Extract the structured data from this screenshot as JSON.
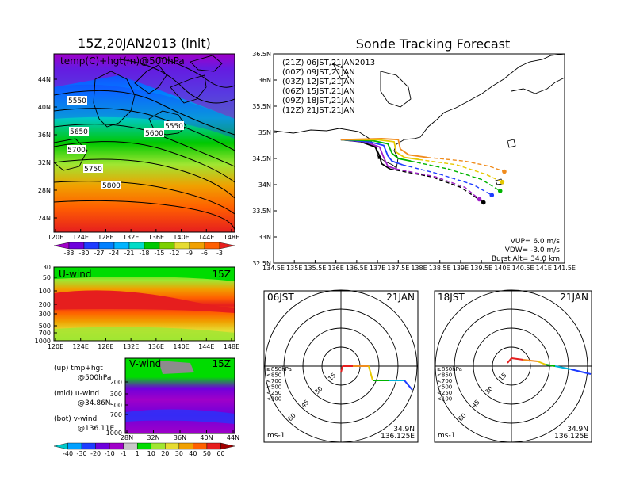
{
  "titles": {
    "left_main": "15Z,20JAN2013 (init)",
    "map_label": "temp(C)+hgt(m)@500hPa",
    "right_main": "Sonde Tracking Forecast",
    "uwind_label": "U-wind",
    "uwind_time": "15Z",
    "vwind_label": "V-wind",
    "vwind_time": "15Z"
  },
  "legend_notes": [
    {
      "a": "(up) tmp+hgt",
      "b": "@500hPa"
    },
    {
      "a": "(mid) u-wind",
      "b": "@34.86N"
    },
    {
      "a": "(bot) v-wind",
      "b": "@136.11E"
    }
  ],
  "left_map": {
    "lat_ticks": [
      "44N",
      "40N",
      "36N",
      "32N",
      "28N",
      "24N"
    ],
    "lon_ticks": [
      "120E",
      "124E",
      "128E",
      "132E",
      "136E",
      "140E",
      "144E",
      "148E"
    ],
    "height_labels": [
      "5550",
      "5650",
      "5600",
      "5550",
      "5700",
      "5750",
      "5800"
    ],
    "temp_colorbar": [
      "-33",
      "-30",
      "-27",
      "-24",
      "-21",
      "-18",
      "-15",
      "-12",
      "-9",
      "-6",
      "-3"
    ],
    "temp_colors": [
      "#a000c8",
      "#6e00dc",
      "#1e3cff",
      "#0080ff",
      "#00b4ff",
      "#00dcc8",
      "#00c800",
      "#7cd000",
      "#e6dc32",
      "#f0a000",
      "#ff6000",
      "#e61e1e"
    ]
  },
  "uwind_panel": {
    "y_ticks": [
      "30",
      "50",
      "100",
      "200",
      "300",
      "500",
      "700",
      "1000"
    ],
    "x_ticks": [
      "120E",
      "124E",
      "128E",
      "132E",
      "136E",
      "140E",
      "144E",
      "148E"
    ]
  },
  "vwind_panel": {
    "y_ticks": [
      "200",
      "300",
      "500",
      "700",
      "1000"
    ],
    "x_ticks": [
      "28N",
      "32N",
      "36N",
      "40N",
      "44N"
    ],
    "wind_colorbar": [
      "-40",
      "-30",
      "-20",
      "-10",
      "-1",
      "1",
      "10",
      "20",
      "30",
      "40",
      "50",
      "60"
    ],
    "wind_colors": [
      "#00c8c8",
      "#00a0ff",
      "#1e3cff",
      "#6e00dc",
      "#a000c8",
      "#c8c8c8",
      "#00dc00",
      "#a0e632",
      "#e6dc32",
      "#f0a000",
      "#ff6000",
      "#e61e1e",
      "#a00000"
    ]
  },
  "track_map": {
    "lat_ticks": [
      "36.5N",
      "36N",
      "35.5N",
      "35N",
      "34.5N",
      "34N",
      "33.5N",
      "33N",
      "32.5N"
    ],
    "lon_ticks": [
      "134.5E",
      "135E",
      "135.5E",
      "136E",
      "136.5E",
      "137E",
      "137.5E",
      "138E",
      "138.5E",
      "139E",
      "139.5E",
      "140E",
      "140.5E",
      "141E",
      "141.5E"
    ],
    "runs": [
      {
        "label": "(21Z)  06JST,21JAN2013",
        "color": "#000000"
      },
      {
        "label": "(00Z)  09JST,21JAN",
        "color": "#a020c8"
      },
      {
        "label": "(03Z)  12JST,21JAN",
        "color": "#1e3cff"
      },
      {
        "label": "(06Z)  15JST,21JAN",
        "color": "#00b400"
      },
      {
        "label": "(09Z)  18JST,21JAN",
        "color": "#e6c800"
      },
      {
        "label": "(12Z)  21JST,21JAN",
        "color": "#f08c1e"
      }
    ],
    "params": {
      "vup": "VUP=  6.0  m/s",
      "vdw": "VDW= -3.0  m/s",
      "burst": "Burst Alt=  34.0  km"
    }
  },
  "hodographs": [
    {
      "time": "06JST",
      "date": "21JAN",
      "lat": "34.9N",
      "lon": "136.125E",
      "unit": "ms-1"
    },
    {
      "time": "18JST",
      "date": "21JAN",
      "lat": "34.9N",
      "lon": "136.125E",
      "unit": "ms-1"
    }
  ],
  "hodo_rings": [
    "15",
    "30",
    "45",
    "60"
  ],
  "pressure_legend": [
    {
      "text": "≥850hPa",
      "color": "#e61e1e"
    },
    {
      "text": "<850",
      "color": "#f08c1e"
    },
    {
      "text": "<700",
      "color": "#e6c800"
    },
    {
      "text": "<500",
      "color": "#00b400"
    },
    {
      "text": "<250",
      "color": "#00b4dc"
    },
    {
      "text": "<100",
      "color": "#1e3cff"
    }
  ],
  "chart_data": {
    "type": "line",
    "title": "Sonde Tracking Forecast",
    "xlabel": "",
    "ylabel": "",
    "xlim": [
      134.5,
      141.5
    ],
    "ylim": [
      32.5,
      36.5
    ],
    "launch": {
      "lon": 136.125,
      "lat": 34.86
    },
    "series": [
      {
        "name": "(21Z)  06JST,21JAN2013",
        "points": [
          [
            136.12,
            34.86
          ],
          [
            136.6,
            34.82
          ],
          [
            136.95,
            34.72
          ],
          [
            137.05,
            34.55
          ],
          [
            137.1,
            34.4
          ],
          [
            137.3,
            34.3
          ],
          [
            138.3,
            34.15
          ],
          [
            139.0,
            33.95
          ],
          [
            139.55,
            33.66
          ]
        ]
      },
      {
        "name": "(00Z)  09JST,21JAN",
        "points": [
          [
            136.12,
            34.86
          ],
          [
            136.7,
            34.82
          ],
          [
            137.05,
            34.72
          ],
          [
            137.15,
            34.52
          ],
          [
            137.25,
            34.35
          ],
          [
            137.45,
            34.3
          ],
          [
            138.4,
            34.15
          ],
          [
            139.1,
            33.95
          ],
          [
            139.45,
            33.72
          ]
        ]
      },
      {
        "name": "(03Z)  12JST,21JAN",
        "points": [
          [
            136.12,
            34.86
          ],
          [
            136.8,
            34.82
          ],
          [
            137.15,
            34.75
          ],
          [
            137.25,
            34.55
          ],
          [
            137.35,
            34.45
          ],
          [
            137.6,
            34.38
          ],
          [
            138.5,
            34.2
          ],
          [
            139.3,
            34.0
          ],
          [
            139.75,
            33.8
          ]
        ]
      },
      {
        "name": "(06Z)  15JST,21JAN",
        "points": [
          [
            136.12,
            34.86
          ],
          [
            136.9,
            34.84
          ],
          [
            137.25,
            34.78
          ],
          [
            137.35,
            34.6
          ],
          [
            137.5,
            34.5
          ],
          [
            137.8,
            34.45
          ],
          [
            138.7,
            34.3
          ],
          [
            139.5,
            34.1
          ],
          [
            139.95,
            33.88
          ]
        ]
      },
      {
        "name": "(09Z)  18JST,21JAN",
        "points": [
          [
            136.12,
            34.86
          ],
          [
            137.0,
            34.86
          ],
          [
            137.4,
            34.82
          ],
          [
            137.45,
            34.62
          ],
          [
            137.65,
            34.52
          ],
          [
            138.0,
            34.48
          ],
          [
            138.9,
            34.38
          ],
          [
            139.6,
            34.2
          ],
          [
            140.0,
            34.05
          ]
        ]
      },
      {
        "name": "(12Z)  21JST,21JAN",
        "points": [
          [
            136.12,
            34.86
          ],
          [
            137.1,
            34.88
          ],
          [
            137.5,
            34.86
          ],
          [
            137.55,
            34.68
          ],
          [
            137.75,
            34.57
          ],
          [
            138.2,
            34.52
          ],
          [
            139.1,
            34.45
          ],
          [
            139.7,
            34.35
          ],
          [
            140.05,
            34.25
          ]
        ]
      }
    ]
  }
}
